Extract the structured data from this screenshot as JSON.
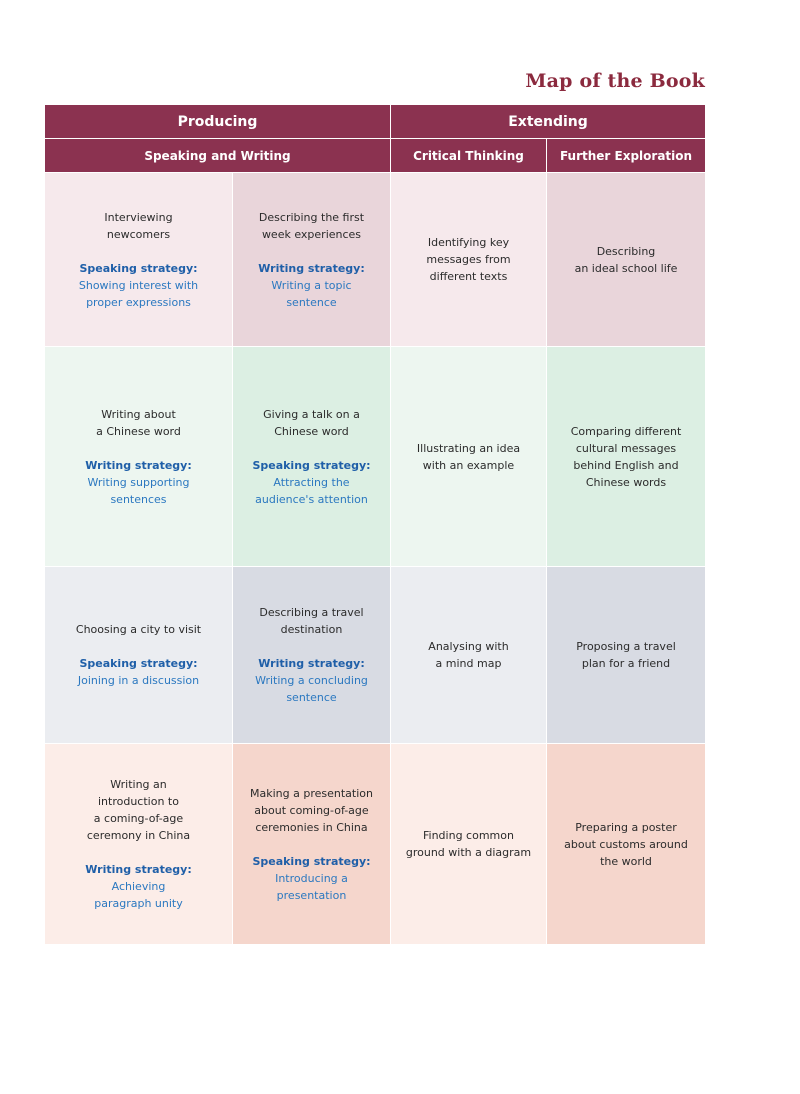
{
  "title": "Map of the Book",
  "headers": {
    "producing": "Producing",
    "extending": "Extending",
    "speaking_writing": "Speaking and Writing",
    "critical_thinking": "Critical Thinking",
    "further_exploration": "Further Exploration"
  },
  "rows": [
    {
      "c1": {
        "desc": "Interviewing\nnewcomers",
        "label": "Speaking strategy:",
        "text": "Showing interest with\nproper expressions"
      },
      "c2": {
        "desc": "Describing the first\nweek experiences",
        "label": "Writing strategy:",
        "text": "Writing a topic\nsentence"
      },
      "c3": "Identifying key\nmessages from\ndifferent texts",
      "c4": "Describing\nan ideal school life"
    },
    {
      "c1": {
        "desc": "Writing about\na Chinese word",
        "label": "Writing strategy:",
        "text": "Writing supporting\nsentences"
      },
      "c2": {
        "desc": "Giving a talk on a\nChinese word",
        "label": "Speaking strategy:",
        "text": "Attracting the\naudience's attention"
      },
      "c3": "Illustrating an idea\nwith an example",
      "c4": "Comparing different\ncultural messages\nbehind English and\nChinese words"
    },
    {
      "c1": {
        "desc": "Choosing a city to visit",
        "label": "Speaking strategy:",
        "text": "Joining in a discussion"
      },
      "c2": {
        "desc": "Describing a travel\ndestination",
        "label": "Writing strategy:",
        "text": "Writing a concluding\nsentence"
      },
      "c3": "Analysing with\na mind map",
      "c4": "Proposing a travel\nplan for a friend"
    },
    {
      "c1": {
        "desc": "Writing an\nintroduction to\na coming-of-age\nceremony in China",
        "label": "Writing strategy:",
        "text": "Achieving\nparagraph unity"
      },
      "c2": {
        "desc": "Making a presentation\nabout coming-of-age\nceremonies in China",
        "label": "Speaking strategy:",
        "text": "Introducing a\npresentation"
      },
      "c3": "Finding common\nground with a diagram",
      "c4": "Preparing a poster\nabout customs around\nthe world"
    }
  ],
  "colors": {
    "header": "#8b3250",
    "title": "#8b2a3e",
    "strategy_label": "#1f5fa8",
    "strategy_text": "#2b78c0"
  }
}
